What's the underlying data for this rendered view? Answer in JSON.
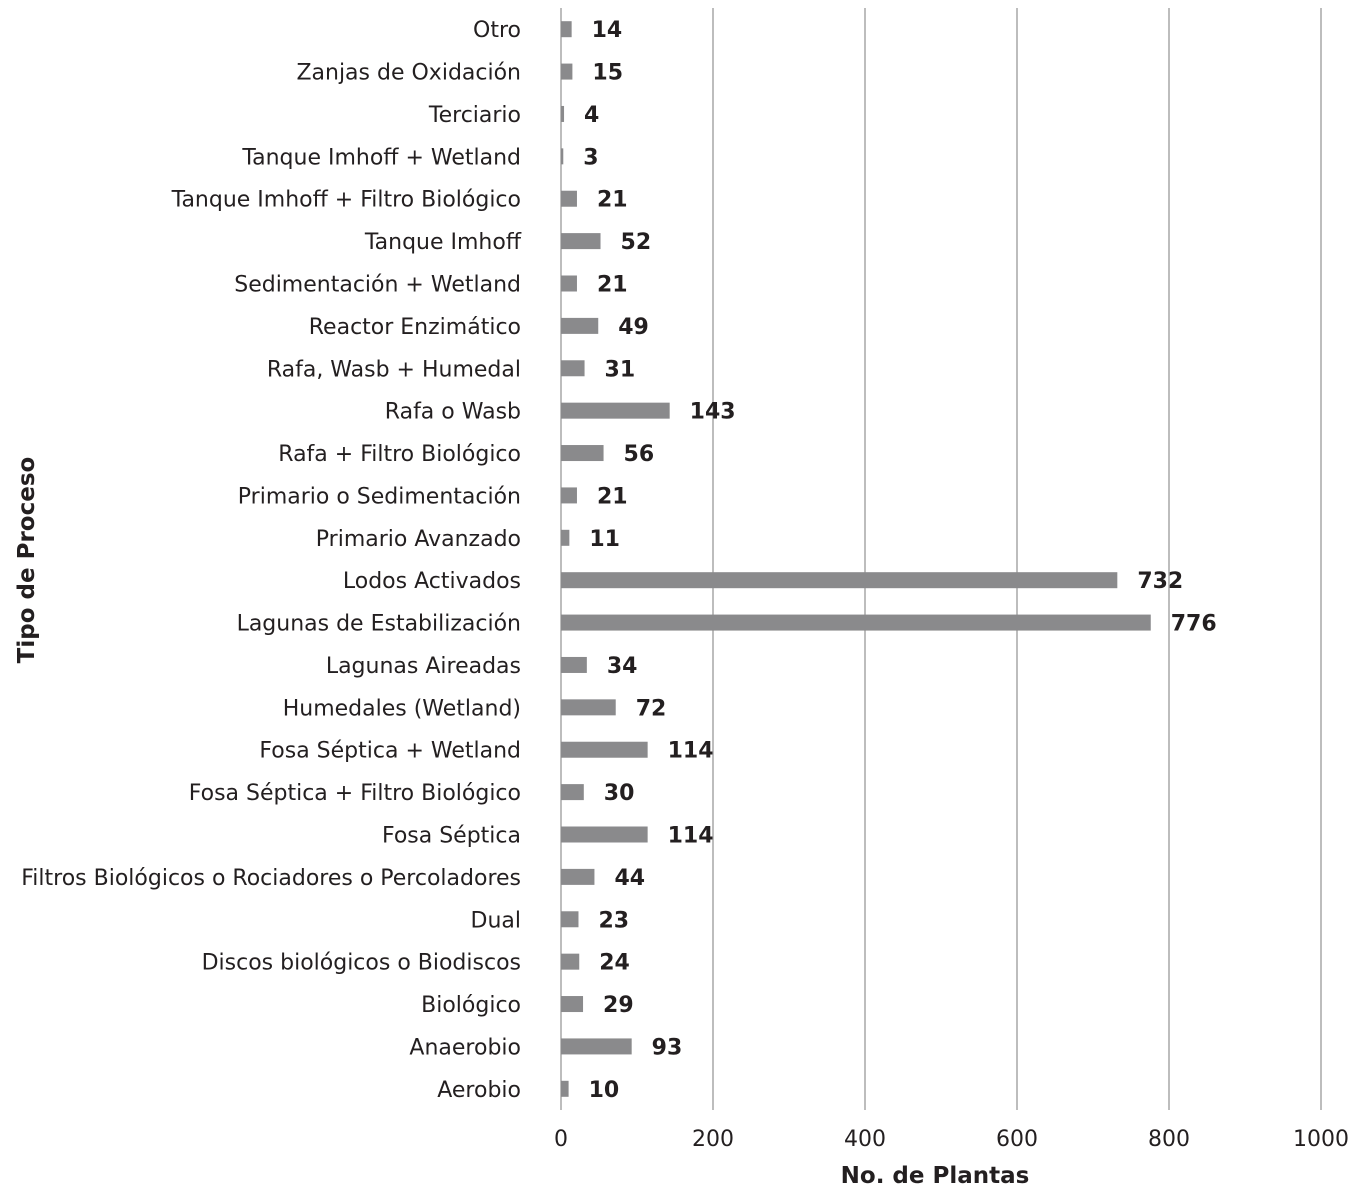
{
  "chart_data": {
    "type": "bar",
    "orientation": "horizontal",
    "categories": [
      "Otro",
      "Zanjas de Oxidación",
      "Terciario",
      "Tanque Imhoff + Wetland",
      "Tanque Imhoff + Filtro Biológico",
      "Tanque Imhoff",
      "Sedimentación + Wetland",
      "Reactor Enzimático",
      "Rafa, Wasb + Humedal",
      "Rafa o Wasb",
      "Rafa + Filtro Biológico",
      "Primario o Sedimentación",
      "Primario Avanzado",
      "Lodos Activados",
      "Lagunas de Estabilización",
      "Lagunas Aireadas",
      "Humedales (Wetland)",
      "Fosa Séptica + Wetland",
      "Fosa Séptica + Filtro Biológico",
      "Fosa Séptica",
      "Filtros Biológicos o Rociadores o Percoladores",
      "Dual",
      "Discos biológicos o Biodiscos",
      "Biológico",
      "Anaerobio",
      "Aerobio"
    ],
    "values": [
      14,
      15,
      4,
      3,
      21,
      52,
      21,
      49,
      31,
      143,
      56,
      21,
      11,
      732,
      776,
      34,
      72,
      114,
      30,
      114,
      44,
      23,
      24,
      29,
      93,
      10
    ],
    "xlabel": "No. de Plantas",
    "ylabel": "Tipo de Proceso",
    "xlim": [
      0,
      1000
    ],
    "xticks": [
      0,
      200,
      400,
      600,
      800,
      1000
    ],
    "grid": "vertical",
    "bar_color": "#8a8a8c",
    "legend": "none"
  }
}
